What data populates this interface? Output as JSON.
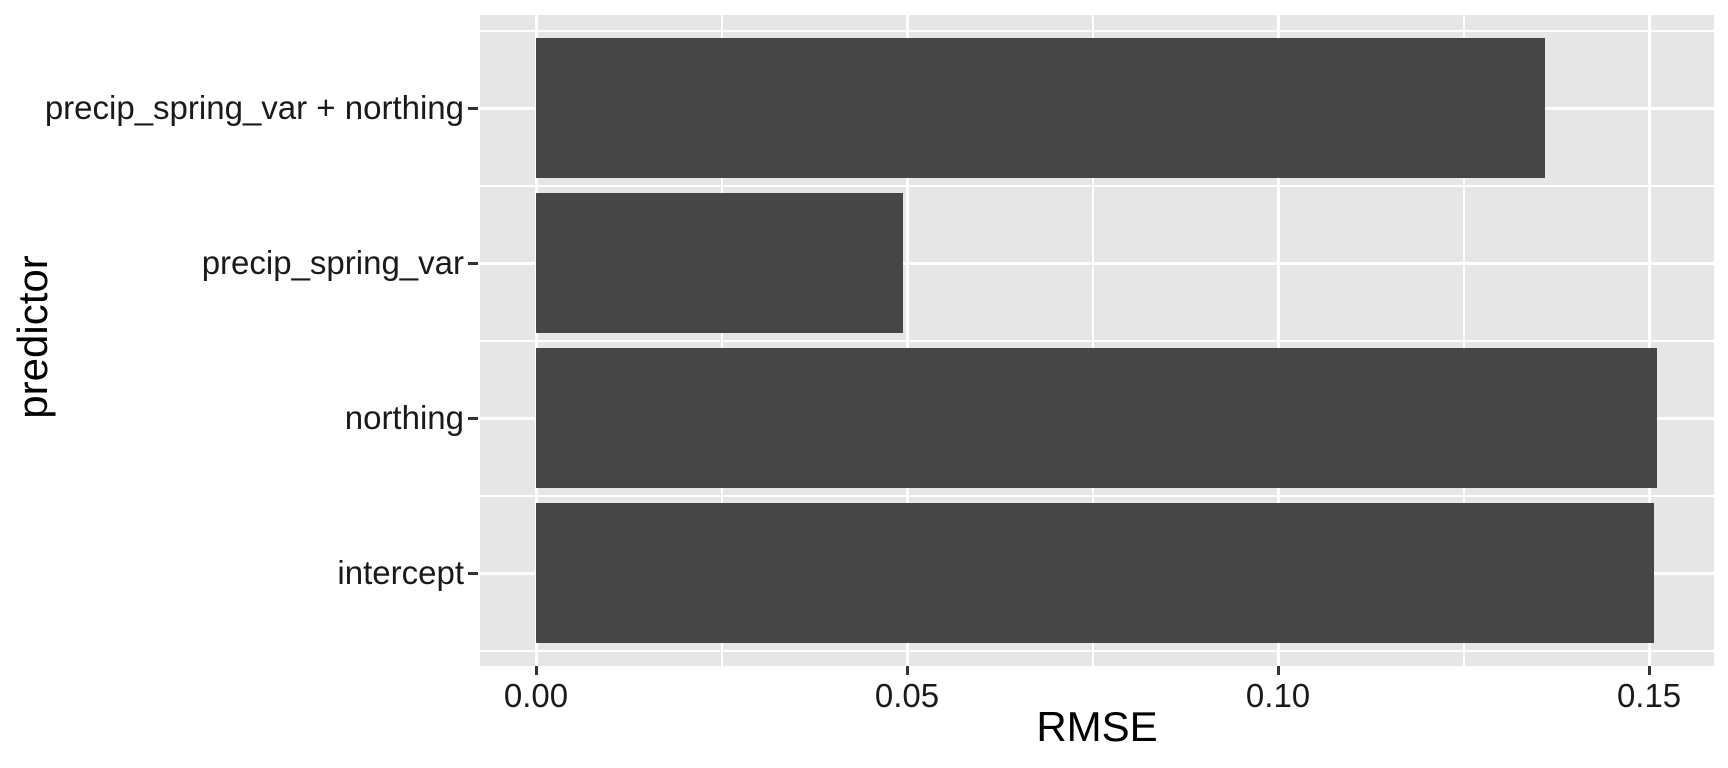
{
  "chart_data": {
    "type": "bar",
    "orientation": "horizontal",
    "title": "",
    "xlabel": "RMSE",
    "ylabel": "predictor",
    "categories": [
      "precip_spring_var + northing",
      "precip_spring_var",
      "northing",
      "intercept"
    ],
    "values": [
      0.136,
      0.0494,
      0.1511,
      0.1507
    ],
    "x_ticks": {
      "values": [
        0,
        0.05,
        0.1,
        0.15
      ],
      "labels": [
        "0.00",
        "0.05",
        "0.10",
        "0.15"
      ]
    },
    "xlim": [
      -0.00755,
      0.15875
    ],
    "grid": {
      "style": "white major and minor gridlines on gray panel",
      "minor_x_values": [
        0.025,
        0.075,
        0.125
      ]
    },
    "legend": "none",
    "colors": {
      "bar_fill": "#464646",
      "panel_background": "#E6E6E6",
      "gridline": "#FFFFFF",
      "tick_mark": "#333333",
      "axis_text": "#1a1a1a",
      "axis_title": "#000000",
      "figure_background": "#FFFFFF"
    }
  }
}
